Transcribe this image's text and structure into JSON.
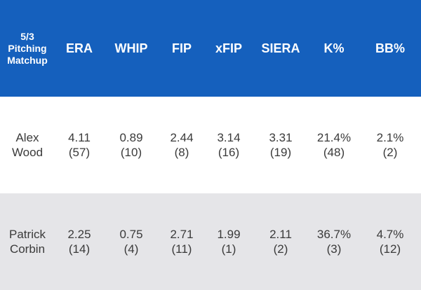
{
  "colors": {
    "header_bg": "#1560bd",
    "row_bg_0": "#ffffff",
    "row_bg_1": "#e5e5e8"
  },
  "header": {
    "matchup_line1": "5/3",
    "matchup_line2": "Pitching",
    "matchup_line3": "Matchup",
    "columns": [
      "ERA",
      "WHIP",
      "FIP",
      "xFIP",
      "SIERA",
      "K%",
      "BB%"
    ]
  },
  "rows": [
    {
      "name_first": "Alex",
      "name_last": "Wood",
      "stats": [
        {
          "value": "4.11",
          "rank": "(57)"
        },
        {
          "value": "0.89",
          "rank": "(10)"
        },
        {
          "value": "2.44",
          "rank": "(8)"
        },
        {
          "value": "3.14",
          "rank": "(16)"
        },
        {
          "value": "3.31",
          "rank": "(19)"
        },
        {
          "value": "21.4%",
          "rank": "(48)"
        },
        {
          "value": "2.1%",
          "rank": "(2)"
        }
      ]
    },
    {
      "name_first": "Patrick",
      "name_last": "Corbin",
      "stats": [
        {
          "value": "2.25",
          "rank": "(14)"
        },
        {
          "value": "0.75",
          "rank": "(4)"
        },
        {
          "value": "2.71",
          "rank": "(11)"
        },
        {
          "value": "1.99",
          "rank": "(1)"
        },
        {
          "value": "2.11",
          "rank": "(2)"
        },
        {
          "value": "36.7%",
          "rank": "(3)"
        },
        {
          "value": "4.7%",
          "rank": "(12)"
        }
      ]
    }
  ]
}
